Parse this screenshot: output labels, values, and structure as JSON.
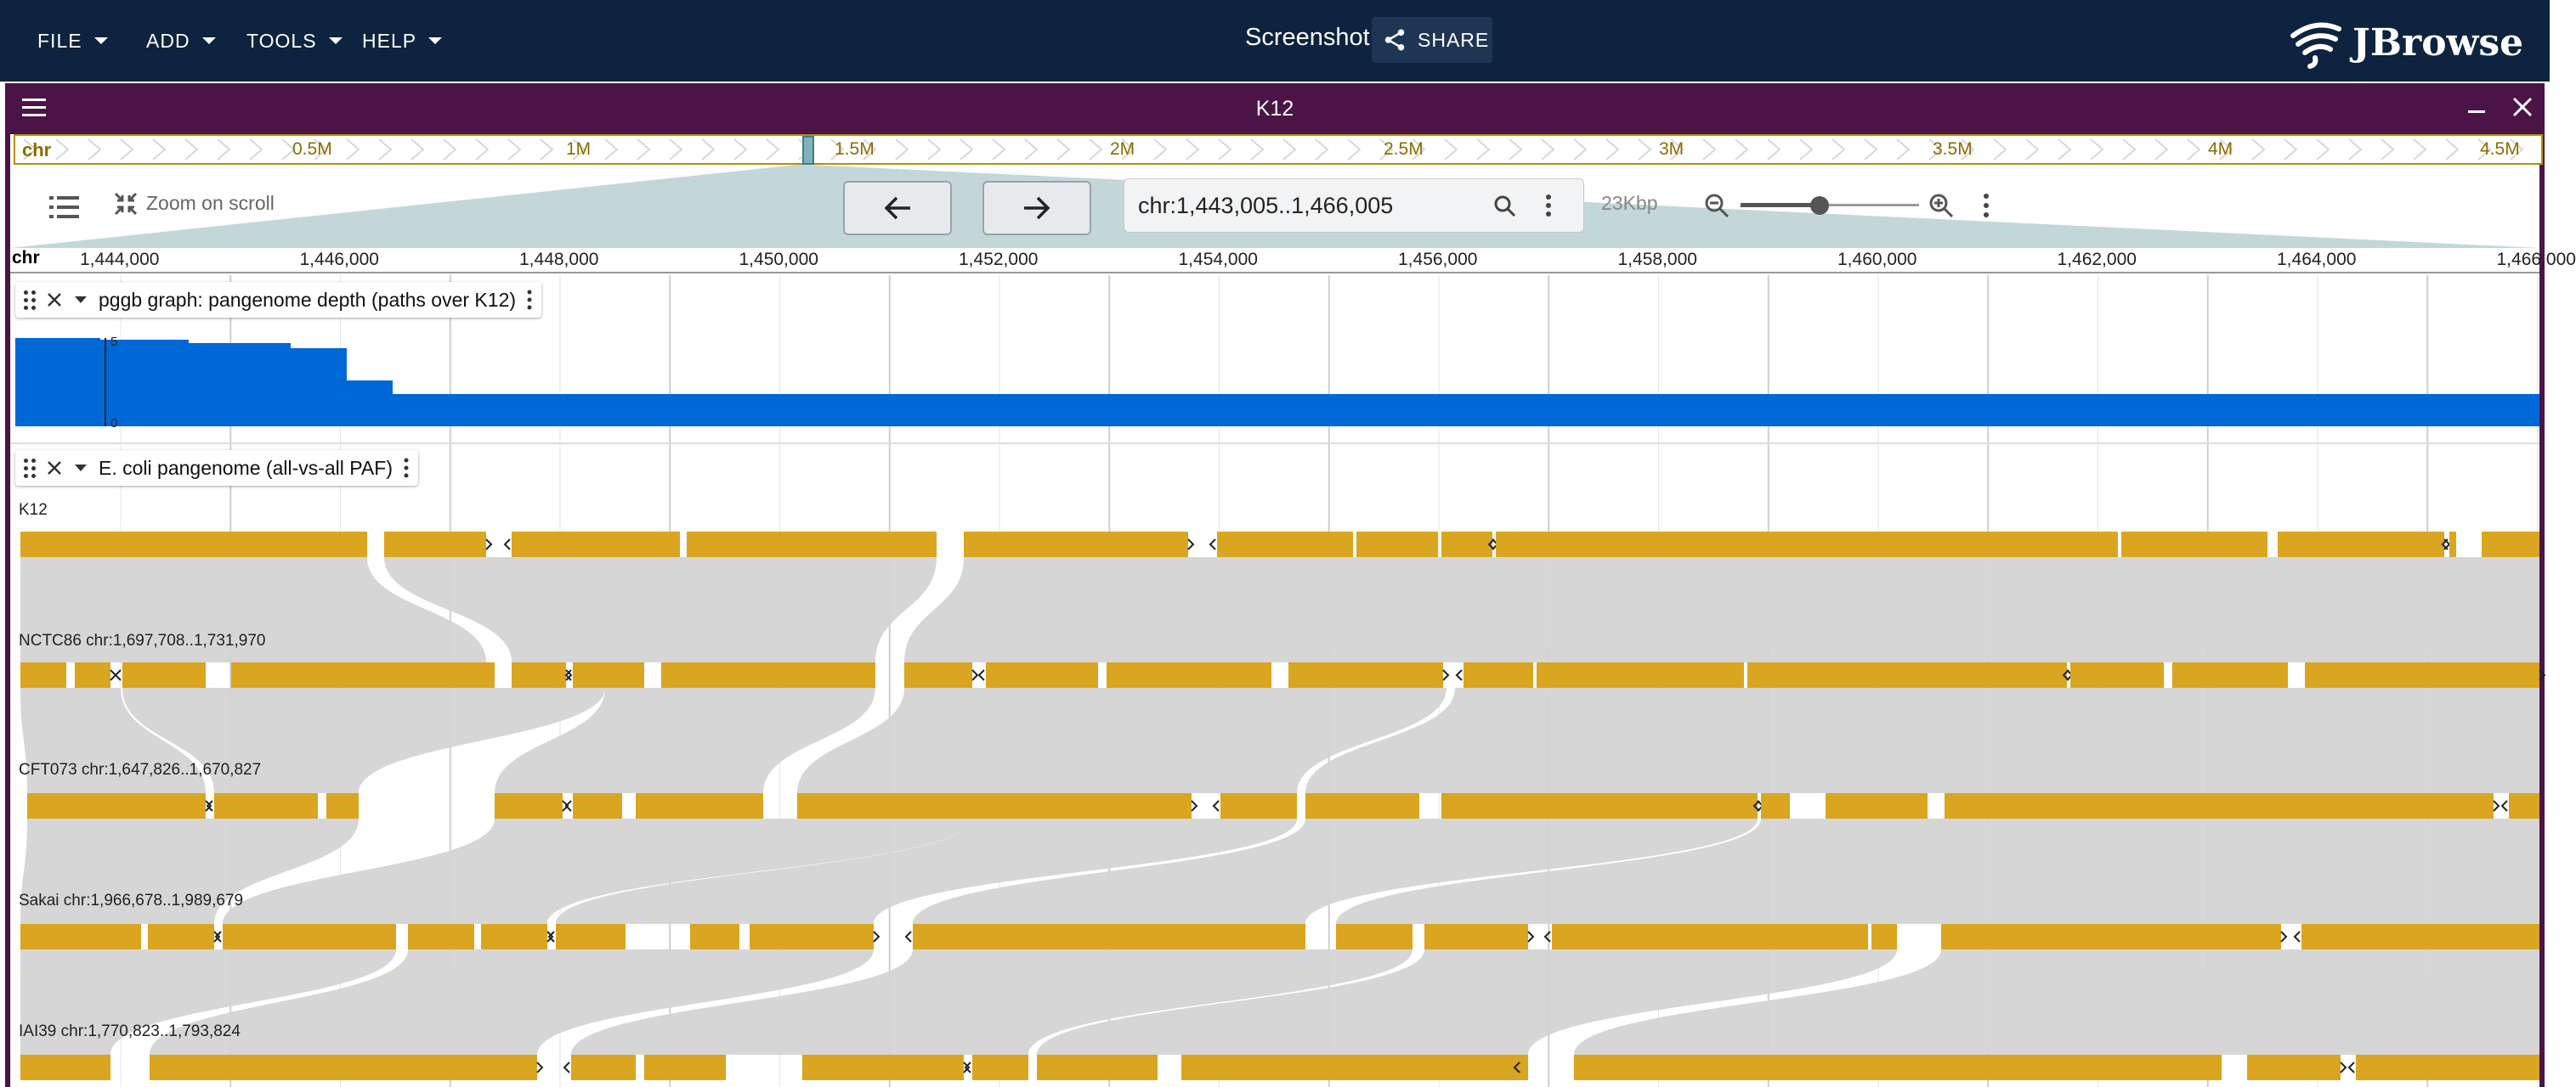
{
  "menus": [
    {
      "label": "FILE"
    },
    {
      "label": "ADD"
    },
    {
      "label": "TOOLS"
    },
    {
      "label": "HELP"
    }
  ],
  "session": {
    "title": "Screenshot",
    "share_label": "SHARE"
  },
  "logo": {
    "text": "JBrowse"
  },
  "view": {
    "title": "K12",
    "overview": {
      "chr": "chr",
      "labels": [
        "0.5M",
        "1M",
        "1.5M",
        "2M",
        "2.5M",
        "3M",
        "3.5M",
        "4M",
        "4.5M"
      ]
    },
    "toolbar": {
      "zoom_on_scroll": "Zoom on scroll",
      "location": "chr:1,443,005..1,466,005",
      "bp_per_view": "23Kbp"
    },
    "ruler": {
      "chr": "chr",
      "ticks": [
        "1,444,000",
        "1,446,000",
        "1,448,000",
        "1,450,000",
        "1,452,000",
        "1,454,000",
        "1,456,000",
        "1,458,000",
        "1,460,000",
        "1,462,000",
        "1,464,000",
        "1,466,000"
      ]
    },
    "tracks": {
      "depth": {
        "name": "pggb graph: pangenome depth (paths over K12)",
        "ymax": "5",
        "ymin": "0",
        "color": "#0068d6"
      },
      "synteny": {
        "name": "E. coli pangenome (all-vs-all PAF)",
        "feature_color": "#daa520",
        "assemblies": [
          {
            "label": "K12"
          },
          {
            "label": "NCTC86 chr:1,697,708..1,731,970"
          },
          {
            "label": "CFT073 chr:1,647,826..1,670,827"
          },
          {
            "label": "Sakai chr:1,966,678..1,989,679"
          },
          {
            "label": "IAI39 chr:1,770,823..1,793,824"
          }
        ]
      }
    }
  },
  "colors": {
    "appbar": "#0d233f",
    "view_frame": "#4b1346",
    "overview_border": "#b39300",
    "synteny_ribbon": "#d4d4d4"
  }
}
